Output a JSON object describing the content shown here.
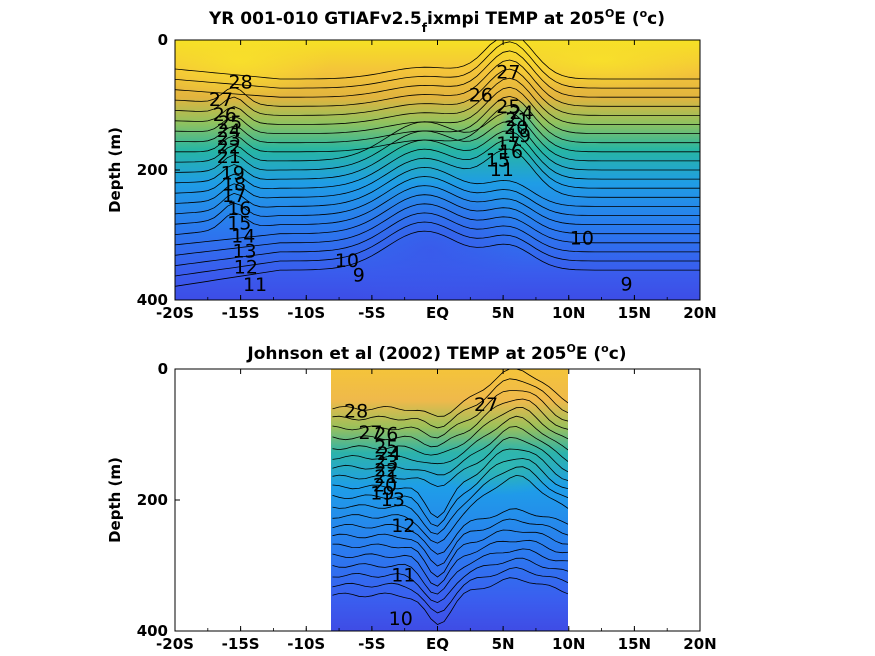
{
  "chart_data": [
    {
      "type": "heatmap",
      "title_main": "YR 001-010 GTIAFv2.5",
      "title_sub": "f",
      "title_rest": "ixmpi TEMP at 205",
      "title_deg": "O",
      "title_unit_open": "E (",
      "title_unit_o": "o",
      "title_unit_close": "c)",
      "ylabel": "Depth (m)",
      "x_ticks": [
        "-20S",
        "-15S",
        "-10S",
        "-5S",
        "EQ",
        "5N",
        "10N",
        "15N",
        "20N"
      ],
      "y_ticks": [
        "0",
        "200",
        "400"
      ],
      "xlim": [
        -20,
        20
      ],
      "ylim": [
        0,
        400
      ],
      "color_range_degC": [
        8,
        29
      ],
      "data_extent_lat": [
        -20,
        20
      ],
      "contour_labels": [
        {
          "text": "28",
          "lat": -15.0,
          "depth": 65
        },
        {
          "text": "27",
          "lat": -16.5,
          "depth": 92
        },
        {
          "text": "26",
          "lat": -16.2,
          "depth": 115
        },
        {
          "text": "25",
          "lat": -15.8,
          "depth": 128
        },
        {
          "text": "24",
          "lat": -15.9,
          "depth": 140
        },
        {
          "text": "23",
          "lat": -15.9,
          "depth": 152
        },
        {
          "text": "22",
          "lat": -15.9,
          "depth": 165
        },
        {
          "text": "21",
          "lat": -15.9,
          "depth": 180
        },
        {
          "text": "19",
          "lat": -15.6,
          "depth": 205
        },
        {
          "text": "18",
          "lat": -15.5,
          "depth": 222
        },
        {
          "text": "17",
          "lat": -15.5,
          "depth": 240
        },
        {
          "text": "16",
          "lat": -15.1,
          "depth": 260
        },
        {
          "text": "15",
          "lat": -15.1,
          "depth": 282
        },
        {
          "text": "14",
          "lat": -14.8,
          "depth": 302
        },
        {
          "text": "13",
          "lat": -14.7,
          "depth": 325
        },
        {
          "text": "12",
          "lat": -14.6,
          "depth": 350
        },
        {
          "text": "11",
          "lat": -13.9,
          "depth": 377
        },
        {
          "text": "27",
          "lat": 5.4,
          "depth": 50
        },
        {
          "text": "26",
          "lat": 3.3,
          "depth": 85
        },
        {
          "text": "25",
          "lat": 5.4,
          "depth": 103
        },
        {
          "text": "24",
          "lat": 6.4,
          "depth": 112
        },
        {
          "text": "21",
          "lat": 6.1,
          "depth": 123
        },
        {
          "text": "20",
          "lat": 6.0,
          "depth": 135
        },
        {
          "text": "19",
          "lat": 6.2,
          "depth": 148
        },
        {
          "text": "17",
          "lat": 5.4,
          "depth": 160
        },
        {
          "text": "16",
          "lat": 5.6,
          "depth": 172
        },
        {
          "text": "15",
          "lat": 4.6,
          "depth": 185
        },
        {
          "text": "11",
          "lat": 4.9,
          "depth": 200
        },
        {
          "text": "10",
          "lat": 11.0,
          "depth": 305
        },
        {
          "text": "10",
          "lat": -6.9,
          "depth": 340
        },
        {
          "text": "9",
          "lat": -6.0,
          "depth": 362
        },
        {
          "text": "9",
          "lat": 14.4,
          "depth": 376
        }
      ]
    },
    {
      "type": "heatmap",
      "title_main": "Johnson et al (2002) TEMP at 205",
      "title_deg": "O",
      "title_unit_open": "E (",
      "title_unit_o": "o",
      "title_unit_close": "c)",
      "ylabel": "Depth (m)",
      "x_ticks": [
        "-20S",
        "-15S",
        "-10S",
        "-5S",
        "EQ",
        "5N",
        "10N",
        "15N",
        "20N"
      ],
      "y_ticks": [
        "0",
        "200",
        "400"
      ],
      "xlim": [
        -20,
        20
      ],
      "ylim": [
        0,
        400
      ],
      "color_range_degC": [
        8,
        29
      ],
      "data_extent_lat": [
        -8,
        10
      ],
      "contour_labels": [
        {
          "text": "28",
          "lat": -6.2,
          "depth": 65
        },
        {
          "text": "27",
          "lat": -5.1,
          "depth": 98
        },
        {
          "text": "26",
          "lat": -3.9,
          "depth": 100
        },
        {
          "text": "25",
          "lat": -3.9,
          "depth": 120
        },
        {
          "text": "24",
          "lat": -3.7,
          "depth": 130
        },
        {
          "text": "23",
          "lat": -3.9,
          "depth": 143
        },
        {
          "text": "22",
          "lat": -3.9,
          "depth": 155
        },
        {
          "text": "21",
          "lat": -3.9,
          "depth": 165
        },
        {
          "text": "20",
          "lat": -4.0,
          "depth": 178
        },
        {
          "text": "19",
          "lat": -4.2,
          "depth": 190
        },
        {
          "text": "13",
          "lat": -3.4,
          "depth": 200
        },
        {
          "text": "12",
          "lat": -2.6,
          "depth": 240
        },
        {
          "text": "27",
          "lat": 3.7,
          "depth": 55
        },
        {
          "text": "11",
          "lat": -2.6,
          "depth": 315
        },
        {
          "text": "10",
          "lat": -2.8,
          "depth": 382
        }
      ]
    }
  ]
}
